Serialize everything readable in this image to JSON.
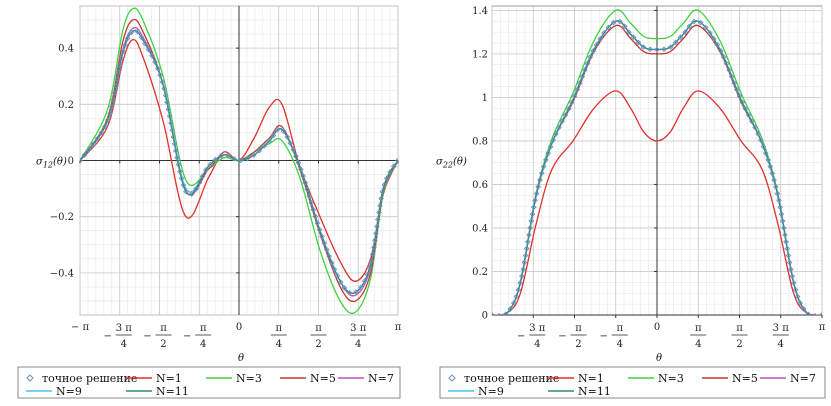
{
  "chart_data": [
    {
      "type": "line",
      "id": "left",
      "ylabel_main": "σ",
      "ylabel_sub": "12",
      "ylabel_arg": "(θ)",
      "xlabel": "θ",
      "xlim": [
        -3.14159,
        3.14159
      ],
      "ylim": [
        -0.55,
        0.55
      ],
      "yticks": [
        -0.4,
        -0.2,
        0,
        0.2,
        0.4
      ],
      "ytick_labels": [
        "−0.4",
        "−0.2",
        "0",
        "0.2",
        "0.4"
      ],
      "x_range": "[-π, π]",
      "xtick_values": [
        -3.14159,
        -2.35619,
        -1.5708,
        -0.785398,
        0,
        0.785398,
        1.5708,
        2.35619,
        3.14159
      ],
      "xtick_labels": [
        {
          "num": "− π",
          "den": ""
        },
        {
          "num": "3 π",
          "den": "4",
          "sign": "−"
        },
        {
          "num": "π",
          "den": "2",
          "sign": "−"
        },
        {
          "num": "π",
          "den": "4",
          "sign": "−"
        },
        {
          "num": "0",
          "den": ""
        },
        {
          "num": "π",
          "den": "4"
        },
        {
          "num": "π",
          "den": "2"
        },
        {
          "num": "3 π",
          "den": "4"
        },
        {
          "num": "π",
          "den": ""
        }
      ],
      "series": [
        {
          "name": "точное решение",
          "color": "#6f8fc6",
          "style": "marker",
          "x": [
            -3.14,
            -2.6,
            -2.3,
            -2.1,
            -1.9,
            -1.5,
            -1.05,
            -0.6,
            -0.3,
            0,
            0.3,
            0.6,
            0.85,
            1.2,
            1.6,
            2.0,
            2.3,
            2.6,
            2.85,
            3.14
          ],
          "y": [
            0,
            0.14,
            0.38,
            0.46,
            0.43,
            0.27,
            -0.11,
            -0.02,
            0.02,
            0,
            0.02,
            0.07,
            0.11,
            -0.02,
            -0.25,
            -0.43,
            -0.47,
            -0.37,
            -0.1,
            0
          ]
        },
        {
          "name": "N=1",
          "color": "#e0302b",
          "style": "line",
          "x": [
            -3.14,
            -2.6,
            -2.3,
            -2.1,
            -1.9,
            -1.5,
            -1.05,
            -0.6,
            -0.3,
            0,
            0.3,
            0.6,
            0.85,
            1.2,
            1.6,
            2.0,
            2.3,
            2.6,
            2.85,
            3.14
          ],
          "y": [
            0,
            0.12,
            0.35,
            0.43,
            0.37,
            0.14,
            -0.2,
            -0.06,
            0.03,
            0,
            0.08,
            0.19,
            0.2,
            -0.02,
            -0.2,
            -0.36,
            -0.43,
            -0.35,
            -0.12,
            0
          ]
        },
        {
          "name": "N=3",
          "color": "#3ed23e",
          "style": "line",
          "x": [
            -3.14,
            -2.6,
            -2.3,
            -2.1,
            -1.9,
            -1.5,
            -1.05,
            -0.6,
            -0.3,
            0,
            0.3,
            0.6,
            0.85,
            1.2,
            1.6,
            2.0,
            2.3,
            2.6,
            2.85,
            3.14
          ],
          "y": [
            0,
            0.18,
            0.46,
            0.54,
            0.5,
            0.3,
            -0.07,
            -0.03,
            0.01,
            0,
            0.03,
            0.06,
            0.07,
            -0.06,
            -0.32,
            -0.5,
            -0.54,
            -0.42,
            -0.12,
            0
          ]
        },
        {
          "name": "N=5",
          "color": "#c0392b",
          "style": "line",
          "x": [
            -3.14,
            -2.6,
            -2.3,
            -2.1,
            -1.9,
            -1.5,
            -1.05,
            -0.6,
            -0.3,
            0,
            0.3,
            0.6,
            0.85,
            1.2,
            1.6,
            2.0,
            2.3,
            2.6,
            2.85,
            3.14
          ],
          "y": [
            0,
            0.15,
            0.42,
            0.5,
            0.46,
            0.27,
            -0.11,
            -0.03,
            0.02,
            0,
            0.03,
            0.08,
            0.12,
            -0.03,
            -0.26,
            -0.45,
            -0.5,
            -0.4,
            -0.11,
            0
          ]
        },
        {
          "name": "N=7",
          "color": "#c050c0",
          "style": "line",
          "x": [
            -3.14,
            -2.6,
            -2.3,
            -2.1,
            -1.9,
            -1.5,
            -1.05,
            -0.6,
            -0.3,
            0,
            0.3,
            0.6,
            0.85,
            1.2,
            1.6,
            2.0,
            2.3,
            2.6,
            2.85,
            3.14
          ],
          "y": [
            0,
            0.14,
            0.39,
            0.47,
            0.44,
            0.27,
            -0.11,
            -0.02,
            0.02,
            0,
            0.02,
            0.07,
            0.11,
            -0.02,
            -0.25,
            -0.43,
            -0.48,
            -0.38,
            -0.1,
            0
          ]
        },
        {
          "name": "N=9",
          "color": "#40c8e0",
          "style": "line",
          "x": [
            -3.14,
            -2.6,
            -2.3,
            -2.1,
            -1.9,
            -1.5,
            -1.05,
            -0.6,
            -0.3,
            0,
            0.3,
            0.6,
            0.85,
            1.2,
            1.6,
            2.0,
            2.3,
            2.6,
            2.85,
            3.14
          ],
          "y": [
            0,
            0.14,
            0.38,
            0.46,
            0.43,
            0.27,
            -0.1,
            -0.02,
            0.02,
            0,
            0.02,
            0.07,
            0.11,
            -0.02,
            -0.25,
            -0.43,
            -0.47,
            -0.37,
            -0.1,
            0
          ]
        },
        {
          "name": "N=11",
          "color": "#2e8b7a",
          "style": "line",
          "x": [
            -3.14,
            -2.6,
            -2.3,
            -2.1,
            -1.9,
            -1.5,
            -1.05,
            -0.6,
            -0.3,
            0,
            0.3,
            0.6,
            0.85,
            1.2,
            1.6,
            2.0,
            2.3,
            2.6,
            2.85,
            3.14
          ],
          "y": [
            0,
            0.14,
            0.38,
            0.46,
            0.43,
            0.27,
            -0.11,
            -0.02,
            0.02,
            0,
            0.02,
            0.07,
            0.11,
            -0.02,
            -0.25,
            -0.43,
            -0.47,
            -0.37,
            -0.1,
            0
          ]
        }
      ]
    },
    {
      "type": "line",
      "id": "right",
      "ylabel_main": "σ",
      "ylabel_sub": "22",
      "ylabel_arg": "(θ)",
      "xlabel": "θ",
      "xlim": [
        -3.14159,
        3.14159
      ],
      "ylim": [
        0,
        1.42
      ],
      "yticks": [
        0,
        0.2,
        0.4,
        0.6,
        0.8,
        1,
        1.2,
        1.4
      ],
      "ytick_labels": [
        "0",
        "0.2",
        "0.4",
        "0.6",
        "0.8",
        "1",
        "1.2",
        "1.4"
      ],
      "xtick_values": [
        -2.35619,
        -1.5708,
        -0.785398,
        0,
        0.785398,
        1.5708,
        2.35619,
        3.14159
      ],
      "xtick_labels": [
        {
          "num": "3 π",
          "den": "4",
          "sign": "−"
        },
        {
          "num": "π",
          "den": "2",
          "sign": "−"
        },
        {
          "num": "π",
          "den": "4",
          "sign": "−"
        },
        {
          "num": "0",
          "den": ""
        },
        {
          "num": "π",
          "den": "4"
        },
        {
          "num": "π",
          "den": "2"
        },
        {
          "num": "3 π",
          "den": "4"
        },
        {
          "num": "π",
          "den": ""
        }
      ],
      "series": [
        {
          "name": "точное решение",
          "color": "#6f8fc6",
          "style": "marker",
          "x": [
            -3.14,
            -2.85,
            -2.6,
            -2.3,
            -2.0,
            -1.6,
            -1.2,
            -0.785,
            -0.5,
            -0.25,
            0,
            0.25,
            0.5,
            0.785,
            1.2,
            1.6,
            2.0,
            2.3,
            2.6,
            2.85,
            3.14
          ],
          "y": [
            0,
            0.01,
            0.15,
            0.55,
            0.79,
            0.99,
            1.22,
            1.35,
            1.29,
            1.23,
            1.22,
            1.23,
            1.29,
            1.35,
            1.22,
            0.99,
            0.79,
            0.55,
            0.15,
            0.01,
            0
          ]
        },
        {
          "name": "N=1",
          "color": "#e0302b",
          "style": "line",
          "x": [
            -3.14,
            -2.85,
            -2.6,
            -2.3,
            -2.0,
            -1.6,
            -1.2,
            -0.785,
            -0.5,
            -0.25,
            0,
            0.25,
            0.5,
            0.785,
            1.2,
            1.6,
            2.0,
            2.3,
            2.6,
            2.85,
            3.14
          ],
          "y": [
            0,
            0.01,
            0.1,
            0.42,
            0.67,
            0.8,
            0.95,
            1.03,
            0.95,
            0.84,
            0.8,
            0.84,
            0.95,
            1.03,
            0.95,
            0.8,
            0.67,
            0.42,
            0.1,
            0.01,
            0
          ]
        },
        {
          "name": "N=3",
          "color": "#3ed23e",
          "style": "line",
          "x": [
            -3.14,
            -2.85,
            -2.6,
            -2.3,
            -2.0,
            -1.6,
            -1.2,
            -0.785,
            -0.5,
            -0.25,
            0,
            0.25,
            0.5,
            0.785,
            1.2,
            1.6,
            2.0,
            2.3,
            2.6,
            2.85,
            3.14
          ],
          "y": [
            0,
            0.01,
            0.15,
            0.56,
            0.81,
            1.02,
            1.26,
            1.4,
            1.34,
            1.28,
            1.27,
            1.28,
            1.34,
            1.4,
            1.26,
            1.02,
            0.81,
            0.56,
            0.15,
            0.01,
            0
          ]
        },
        {
          "name": "N=5",
          "color": "#c0392b",
          "style": "line",
          "x": [
            -3.14,
            -2.85,
            -2.6,
            -2.3,
            -2.0,
            -1.6,
            -1.2,
            -0.785,
            -0.5,
            -0.25,
            0,
            0.25,
            0.5,
            0.785,
            1.2,
            1.6,
            2.0,
            2.3,
            2.6,
            2.85,
            3.14
          ],
          "y": [
            0,
            0.01,
            0.15,
            0.55,
            0.79,
            0.98,
            1.21,
            1.33,
            1.27,
            1.21,
            1.2,
            1.21,
            1.27,
            1.33,
            1.21,
            0.98,
            0.79,
            0.55,
            0.15,
            0.01,
            0
          ]
        },
        {
          "name": "N=7",
          "color": "#c050c0",
          "style": "line",
          "x": [
            -3.14,
            -2.85,
            -2.6,
            -2.3,
            -2.0,
            -1.6,
            -1.2,
            -0.785,
            -0.5,
            -0.25,
            0,
            0.25,
            0.5,
            0.785,
            1.2,
            1.6,
            2.0,
            2.3,
            2.6,
            2.85,
            3.14
          ],
          "y": [
            0,
            0.01,
            0.15,
            0.55,
            0.79,
            0.99,
            1.22,
            1.35,
            1.29,
            1.23,
            1.22,
            1.23,
            1.29,
            1.35,
            1.22,
            0.99,
            0.79,
            0.55,
            0.15,
            0.01,
            0
          ]
        },
        {
          "name": "N=9",
          "color": "#40c8e0",
          "style": "line",
          "x": [
            -3.14,
            -2.85,
            -2.6,
            -2.3,
            -2.0,
            -1.6,
            -1.2,
            -0.785,
            -0.5,
            -0.25,
            0,
            0.25,
            0.5,
            0.785,
            1.2,
            1.6,
            2.0,
            2.3,
            2.6,
            2.85,
            3.14
          ],
          "y": [
            0,
            0.01,
            0.15,
            0.55,
            0.79,
            0.99,
            1.22,
            1.35,
            1.29,
            1.23,
            1.22,
            1.23,
            1.29,
            1.35,
            1.22,
            0.99,
            0.79,
            0.55,
            0.15,
            0.01,
            0
          ]
        },
        {
          "name": "N=11",
          "color": "#2e8b7a",
          "style": "line",
          "x": [
            -3.14,
            -2.85,
            -2.6,
            -2.3,
            -2.0,
            -1.6,
            -1.2,
            -0.785,
            -0.5,
            -0.25,
            0,
            0.25,
            0.5,
            0.785,
            1.2,
            1.6,
            2.0,
            2.3,
            2.6,
            2.85,
            3.14
          ],
          "y": [
            0,
            0.01,
            0.15,
            0.55,
            0.79,
            0.99,
            1.22,
            1.35,
            1.29,
            1.23,
            1.22,
            1.23,
            1.29,
            1.35,
            1.22,
            0.99,
            0.79,
            0.55,
            0.15,
            0.01,
            0
          ]
        }
      ]
    }
  ]
}
